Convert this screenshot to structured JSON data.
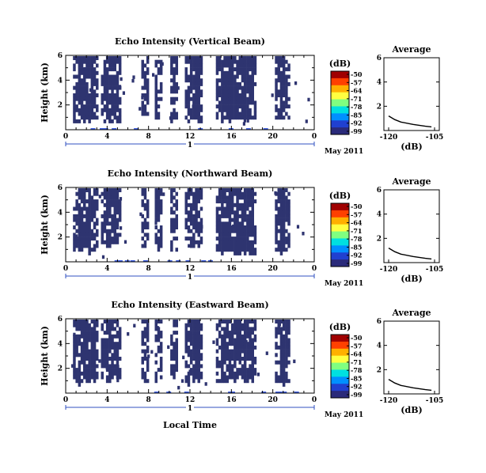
{
  "panels": [
    {
      "title": "Echo Intensity (Vertical Beam)",
      "avg_title": "Average",
      "date_label": "May 2011",
      "day_label": "1",
      "seed": 11,
      "xlabel": ""
    },
    {
      "title": "Echo Intensity (Northward Beam)",
      "avg_title": "Average",
      "date_label": "May 2011",
      "day_label": "1",
      "seed": 37,
      "xlabel": ""
    },
    {
      "title": "Echo Intensity (Eastward Beam)",
      "avg_title": "Average",
      "date_label": "May 2011",
      "day_label": "1",
      "seed": 73,
      "xlabel": "Local Time"
    }
  ],
  "chart_data": {
    "type": "heatmap",
    "ylabel": "Height (km)",
    "x_ticks": [
      "0",
      "4",
      "8",
      "12",
      "16",
      "20",
      "0"
    ],
    "x_range": [
      0,
      24
    ],
    "y_ticks": [
      "2",
      "4",
      "6"
    ],
    "y_range": [
      0,
      6
    ],
    "colorbar": {
      "label": "(dB)",
      "ticks": [
        "-50",
        "-57",
        "-64",
        "-71",
        "-78",
        "-85",
        "-92",
        "-99"
      ],
      "colors": [
        "#a00000",
        "#ff4000",
        "#ffb000",
        "#ffff40",
        "#80ff80",
        "#00e0e0",
        "#0090ff",
        "#2040d0",
        "#2a2a7a"
      ]
    },
    "echo_color": "#2e3470",
    "echo_bands_hours": [
      [
        0.7,
        3.0
      ],
      [
        3.4,
        5.2
      ],
      [
        7.3,
        8.0
      ],
      [
        8.6,
        9.3
      ],
      [
        10.1,
        10.7
      ],
      [
        11.5,
        13.2
      ],
      [
        14.5,
        18.3
      ],
      [
        20.2,
        21.5
      ]
    ],
    "average": {
      "xlabel": "(dB)",
      "x_ticks": [
        "-120",
        "-105"
      ],
      "x_range": [
        -120,
        -105
      ],
      "y_ticks": [
        "2",
        "4",
        "6"
      ],
      "y_range": [
        0,
        6
      ],
      "profile": [
        {
          "db": -120,
          "h": 1.2
        },
        {
          "db": -118,
          "h": 0.9
        },
        {
          "db": -116,
          "h": 0.7
        },
        {
          "db": -112,
          "h": 0.5
        },
        {
          "db": -108,
          "h": 0.35
        },
        {
          "db": -106,
          "h": 0.3
        }
      ]
    }
  }
}
